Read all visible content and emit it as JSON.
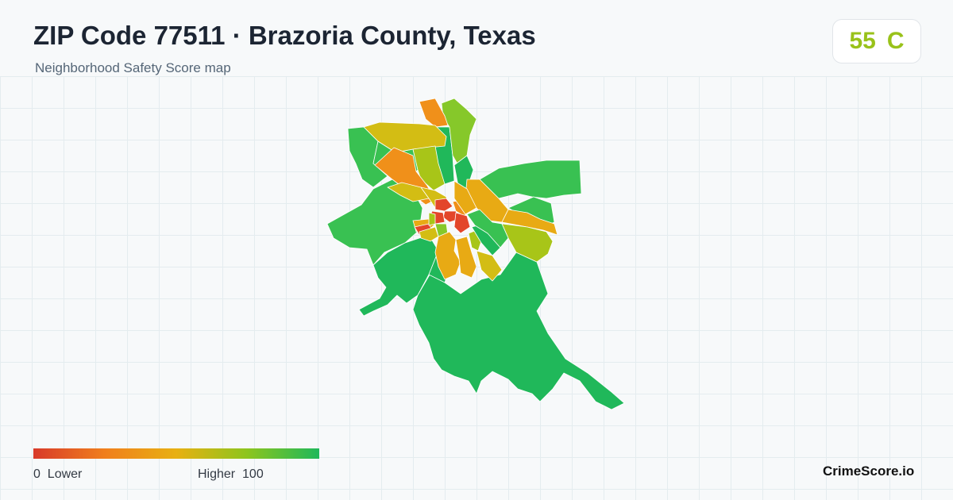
{
  "header": {
    "title": "ZIP Code 77511 · Brazoria County, Texas",
    "subtitle": "Neighborhood Safety Score map"
  },
  "score": {
    "value": "55",
    "grade": "C",
    "color": "#99c21a"
  },
  "legend": {
    "min": "0",
    "low_label": "Lower",
    "high_label": "Higher",
    "max": "100",
    "colors": [
      "#d83a2a",
      "#f07f1c",
      "#e8b012",
      "#8cc51e",
      "#1fb85a"
    ]
  },
  "map": {
    "palette": {
      "red": "#e3462a",
      "orange": "#f0901a",
      "amber": "#e8aa14",
      "yellow": "#d3bd14",
      "olive": "#a8c518",
      "lime": "#86c82a",
      "green": "#39c152",
      "dark_green": "#20b85a",
      "border": "#ffffff"
    }
  },
  "brand": "CrimeScore.io"
}
